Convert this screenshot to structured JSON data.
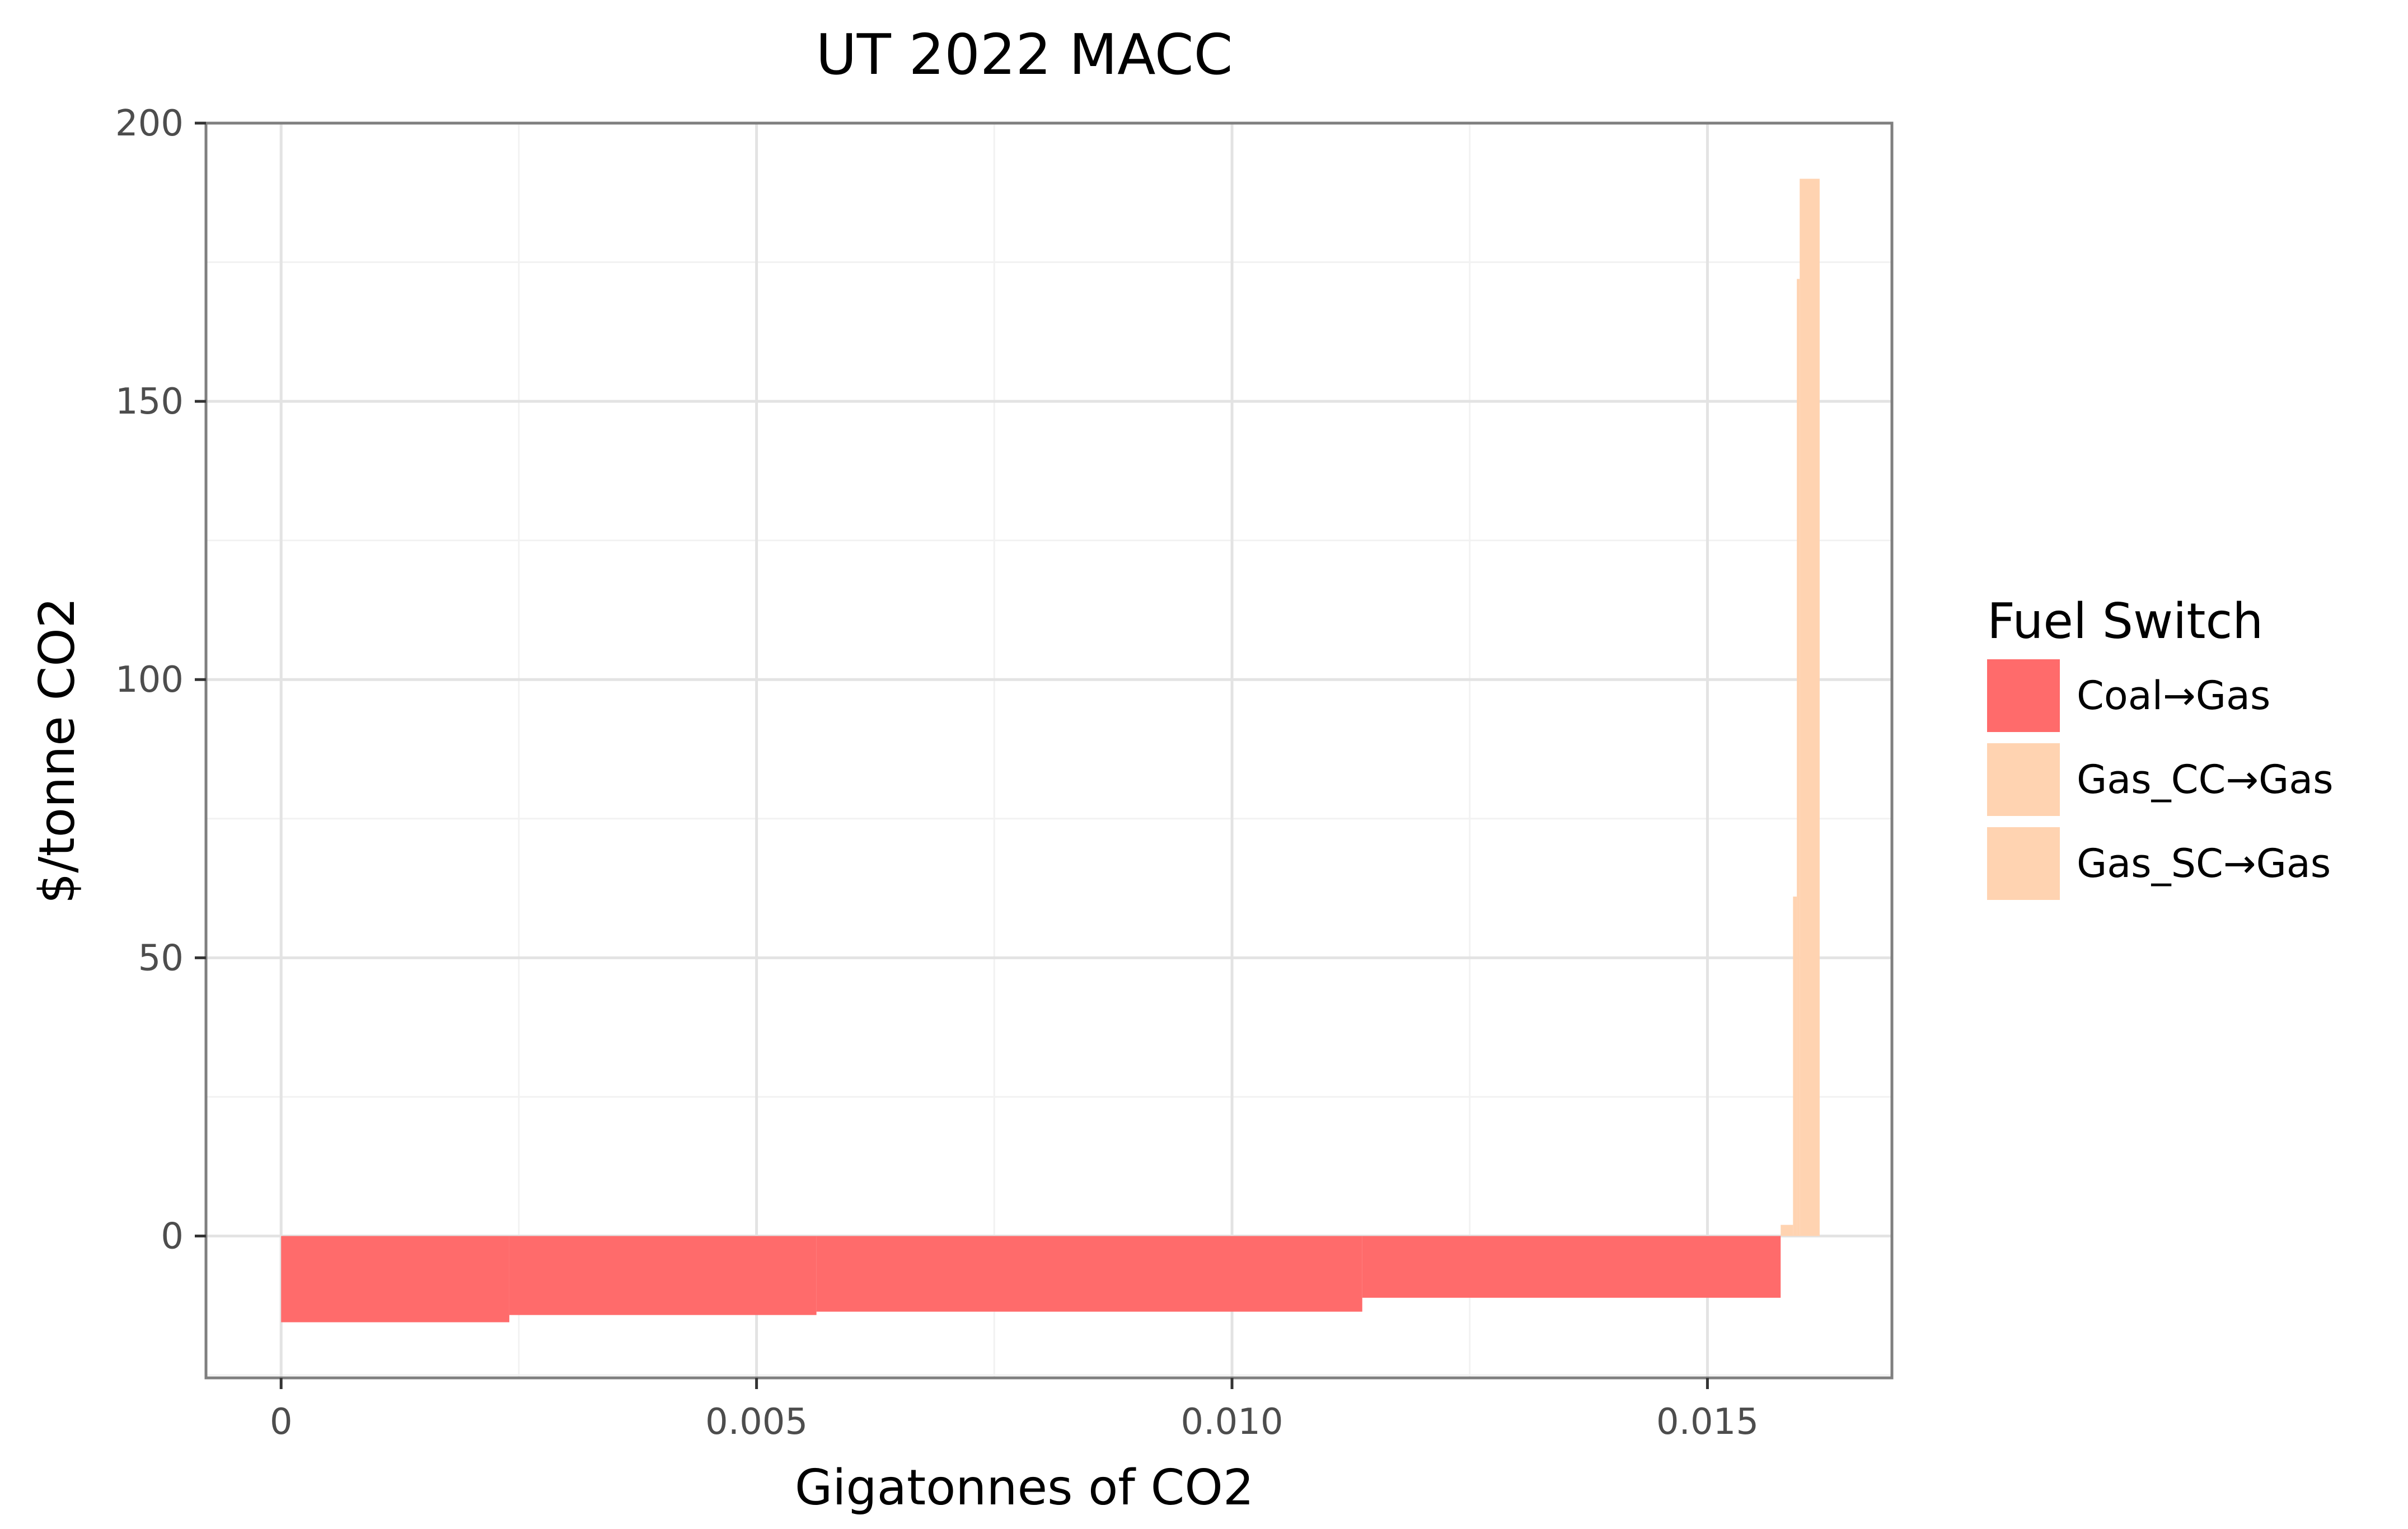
{
  "chart_data": {
    "type": "bar",
    "subtype": "marginal-abatement-cost-curve",
    "title": "UT 2022 MACC",
    "xlabel": "Gigatonnes of CO2",
    "ylabel": "$/tonne CO2",
    "xlim": [
      -0.00079,
      0.01694
    ],
    "ylim": [
      -25.5,
      200
    ],
    "x_ticks": [
      {
        "value": 0,
        "label": "0"
      },
      {
        "value": 0.005,
        "label": "0.005"
      },
      {
        "value": 0.01,
        "label": "0.010"
      },
      {
        "value": 0.015,
        "label": "0.015"
      }
    ],
    "y_ticks": [
      {
        "value": 0,
        "label": "0"
      },
      {
        "value": 50,
        "label": "50"
      },
      {
        "value": 100,
        "label": "100"
      },
      {
        "value": 150,
        "label": "150"
      },
      {
        "value": 200,
        "label": "200"
      }
    ],
    "grid": true,
    "legend": {
      "title": "Fuel Switch",
      "position": "right",
      "entries": [
        {
          "label": "Coal→Gas",
          "color": "#ff6b6b"
        },
        {
          "label": "Gas_CC→Gas",
          "color": "#ffd3b1"
        },
        {
          "label": "Gas_SC→Gas",
          "color": "#ffd3b1"
        }
      ]
    },
    "series": [
      {
        "name": "Coal→Gas",
        "color": "#ff6b6b",
        "bars": [
          {
            "x_start": 0.0,
            "x_end": 0.0024,
            "cost": -15.5
          },
          {
            "x_start": 0.0024,
            "x_end": 0.00563,
            "cost": -14.2
          },
          {
            "x_start": 0.00563,
            "x_end": 0.01137,
            "cost": -13.6
          },
          {
            "x_start": 0.01137,
            "x_end": 0.01577,
            "cost": -11.1
          }
        ]
      },
      {
        "name": "Gas_CC→Gas",
        "color": "#ffd3b1",
        "bars": [
          {
            "x_start": 0.01577,
            "x_end": 0.0159,
            "cost": 2.0
          },
          {
            "x_start": 0.0159,
            "x_end": 0.01594,
            "cost": 61.0
          }
        ]
      },
      {
        "name": "Gas_SC→Gas",
        "color": "#ffd3b1",
        "bars": [
          {
            "x_start": 0.01594,
            "x_end": 0.01597,
            "cost": 172.0
          },
          {
            "x_start": 0.01597,
            "x_end": 0.01618,
            "cost": 190.0
          }
        ]
      }
    ]
  }
}
